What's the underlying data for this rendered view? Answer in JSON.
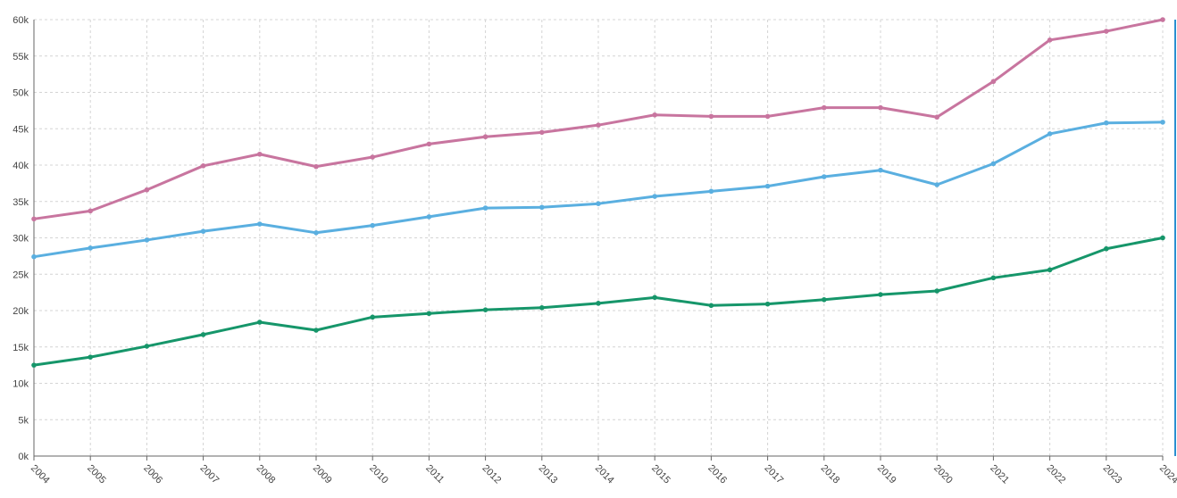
{
  "chart_data": {
    "type": "line",
    "x": [
      2004,
      2005,
      2006,
      2007,
      2008,
      2009,
      2010,
      2011,
      2012,
      2013,
      2014,
      2015,
      2016,
      2017,
      2018,
      2019,
      2020,
      2021,
      2022,
      2023,
      2024
    ],
    "xlim": [
      2004,
      2024
    ],
    "series": [
      {
        "color": "#c8759f",
        "values": [
          32600,
          33700,
          36600,
          39900,
          41500,
          39800,
          41100,
          42900,
          43900,
          44500,
          45500,
          46900,
          46700,
          46700,
          47900,
          47900,
          46600,
          51500,
          57200,
          58400,
          60000
        ]
      },
      {
        "color": "#5aafe0",
        "values": [
          27400,
          28600,
          29700,
          30900,
          31900,
          30700,
          31700,
          32900,
          34100,
          34200,
          34700,
          35700,
          36400,
          37100,
          38400,
          39300,
          37300,
          40200,
          44300,
          45800,
          45900
        ]
      },
      {
        "color": "#16966a",
        "values": [
          12500,
          13600,
          15100,
          16700,
          18400,
          17300,
          19100,
          19600,
          20100,
          20400,
          21000,
          21800,
          20700,
          20900,
          21500,
          22200,
          22700,
          24500,
          25600,
          28500,
          30000
        ]
      }
    ],
    "ylim": [
      0,
      60000
    ],
    "yticks": [
      {
        "value": 0,
        "label": "0k"
      },
      {
        "value": 5000,
        "label": "5k"
      },
      {
        "value": 10000,
        "label": "10k"
      },
      {
        "value": 15000,
        "label": "15k"
      },
      {
        "value": 20000,
        "label": "20k"
      },
      {
        "value": 25000,
        "label": "25k"
      },
      {
        "value": 30000,
        "label": "30k"
      },
      {
        "value": 35000,
        "label": "35k"
      },
      {
        "value": 40000,
        "label": "40k"
      },
      {
        "value": 45000,
        "label": "45k"
      },
      {
        "value": 50000,
        "label": "50k"
      },
      {
        "value": 55000,
        "label": "55k"
      },
      {
        "value": 60000,
        "label": "60k"
      }
    ],
    "grid": true
  }
}
